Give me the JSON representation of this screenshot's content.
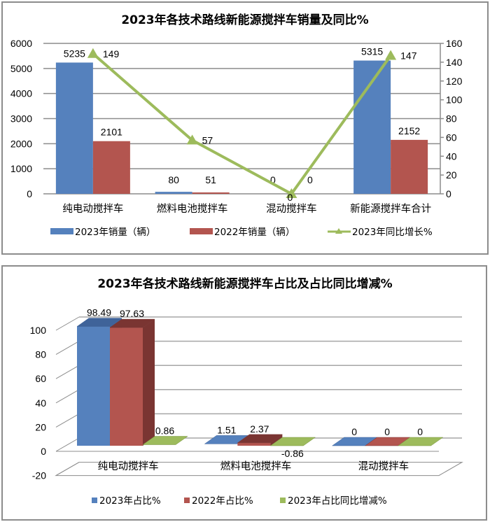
{
  "colors": {
    "blue": "#5581bd",
    "blue_dark": "#3f6399",
    "red": "#b3554f",
    "red_dark": "#7a3532",
    "green": "#9dbb5c",
    "green_dark": "#76923c",
    "grid": "#8c8c8c"
  },
  "chart_data": [
    {
      "type": "bar+line",
      "title": "2023年各技术路线新能源搅拌车销量及同比%",
      "categories": [
        "纯电动搅拌车",
        "燃料电池搅拌车",
        "混动搅拌车",
        "新能源搅拌车合计"
      ],
      "series": [
        {
          "name": "2023年销量（辆）",
          "type": "bar",
          "axis": "left",
          "values": [
            5235,
            80,
            0,
            5315
          ],
          "labels": [
            "5235",
            "80",
            "0",
            "5315"
          ]
        },
        {
          "name": "2022年销量（辆）",
          "type": "bar",
          "axis": "left",
          "values": [
            2101,
            51,
            0,
            2152
          ],
          "labels": [
            "2101",
            "51",
            "0",
            "2152"
          ]
        },
        {
          "name": "2023年同比增长%",
          "type": "line",
          "axis": "right",
          "values": [
            149,
            57,
            0,
            147
          ],
          "labels": [
            "149",
            "57",
            "0",
            "147"
          ]
        }
      ],
      "y_left": {
        "min": 0,
        "max": 6000,
        "ticks": [
          "0",
          "1000",
          "2000",
          "3000",
          "4000",
          "5000",
          "6000"
        ]
      },
      "y_right": {
        "min": 0,
        "max": 160,
        "ticks": [
          "0",
          "20",
          "40",
          "60",
          "80",
          "100",
          "120",
          "140",
          "160"
        ]
      },
      "grid": true,
      "legend_position": "bottom"
    },
    {
      "type": "bar",
      "style": "3d-clustered",
      "title": "2023年各技术路线新能源搅拌车占比及占比同比增减%",
      "categories": [
        "纯电动搅拌车",
        "燃料电池搅拌车",
        "混动搅拌车"
      ],
      "series": [
        {
          "name": "2023年占比%",
          "values": [
            98.49,
            1.51,
            0
          ],
          "labels": [
            "98.49",
            "1.51",
            "0"
          ]
        },
        {
          "name": "2022年占比%",
          "values": [
            97.63,
            2.37,
            0
          ],
          "labels": [
            "97.63",
            "2.37",
            "0"
          ]
        },
        {
          "name": "2023年占比同比增减%",
          "values": [
            0.86,
            -0.86,
            0
          ],
          "labels": [
            "0.86",
            "-0.86",
            "0"
          ]
        }
      ],
      "y_axis": {
        "min": -20,
        "max": 100,
        "ticks": [
          "-20",
          "0",
          "20",
          "40",
          "60",
          "80",
          "100"
        ]
      },
      "grid": true,
      "legend_position": "bottom"
    }
  ]
}
